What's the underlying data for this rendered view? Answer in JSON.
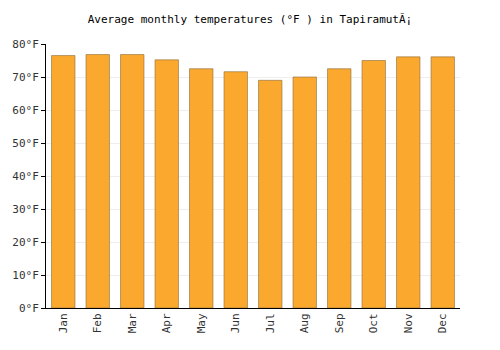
{
  "chart_data": {
    "type": "bar",
    "title": "Average monthly temperatures (°F ) in TapiramutÃ¡",
    "categories": [
      "Jan",
      "Feb",
      "Mar",
      "Apr",
      "May",
      "Jun",
      "Jul",
      "Aug",
      "Sep",
      "Oct",
      "Nov",
      "Dec"
    ],
    "values": [
      76.5,
      76.8,
      76.8,
      75.2,
      72.5,
      71.6,
      69.0,
      70.0,
      72.5,
      75.0,
      76.1,
      76.1
    ],
    "color": "#fba92e",
    "ylim": [
      0,
      80
    ],
    "yticks": [
      {
        "value": 0,
        "label": "0°F"
      },
      {
        "value": 10,
        "label": "10°F"
      },
      {
        "value": 20,
        "label": "20°F"
      },
      {
        "value": 30,
        "label": "30°F"
      },
      {
        "value": 40,
        "label": "40°F"
      },
      {
        "value": 50,
        "label": "50°F"
      },
      {
        "value": 60,
        "label": "60°F"
      },
      {
        "value": 70,
        "label": "70°F"
      },
      {
        "value": 80,
        "label": "80°F"
      }
    ],
    "grid": true
  }
}
